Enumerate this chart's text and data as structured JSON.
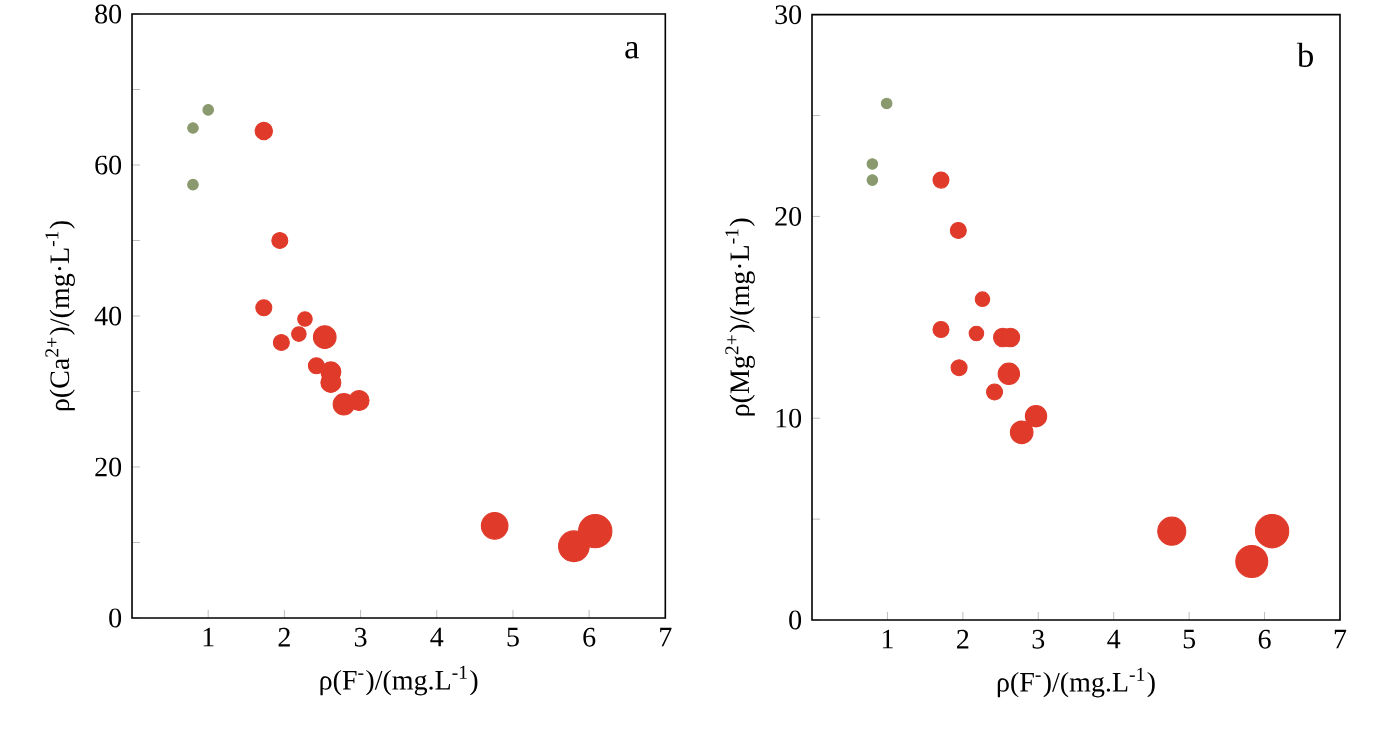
{
  "chart_data": [
    {
      "type": "bubble",
      "xlabel": "ρ(F$^{-}$)/(mg.L$^{-1}$)",
      "ylabel": "ρ(Ca$^{2+}$)/(mg·L$^{-1}$)",
      "annotations": [
        "a"
      ],
      "xlim": [
        0,
        7
      ],
      "ylim": [
        0,
        80
      ],
      "xticks": [
        1,
        2,
        3,
        4,
        5,
        6,
        7
      ],
      "yticks": [
        0,
        {
          "value": 10,
          "label": null
        },
        20,
        {
          "value": 30,
          "label": null
        },
        40,
        {
          "value": 50,
          "label": null
        },
        60,
        {
          "value": 70,
          "label": null
        },
        80
      ],
      "series": [
        {
          "color": "#8a9a6e",
          "x": [
            0.8,
            1.0,
            0.8
          ],
          "values": [
            64.9,
            67.3,
            57.4
          ],
          "sizes": [
            0.1,
            0.1,
            0.1
          ]
        },
        {
          "color": "#e03a2a",
          "x": [
            1.73,
            1.94,
            1.73,
            1.96,
            2.19,
            2.27,
            2.53,
            2.42,
            2.61,
            2.61,
            2.78,
            2.98,
            4.76,
            5.8,
            6.08
          ],
          "values": [
            64.5,
            50.0,
            41.1,
            36.5,
            37.6,
            39.6,
            37.2,
            33.4,
            32.6,
            31.2,
            28.3,
            28.8,
            12.2,
            9.5,
            11.5
          ],
          "sizes": [
            0.27,
            0.23,
            0.23,
            0.23,
            0.19,
            0.19,
            0.46,
            0.23,
            0.36,
            0.36,
            0.41,
            0.36,
            0.64,
            0.85,
            1
          ]
        }
      ]
    },
    {
      "type": "bubble",
      "xlabel": "ρ(F$^{-}$)/(mg.L$^{-1}$)",
      "ylabel": "ρ(Mg$^{2+}$)/(mg·L$^{-1}$)",
      "annotations": [
        "b"
      ],
      "xlim": [
        0,
        7
      ],
      "ylim": [
        0,
        30
      ],
      "xticks": [
        1,
        2,
        3,
        4,
        5,
        6,
        7
      ],
      "yticks": [
        0,
        {
          "value": 5,
          "label": null
        },
        10,
        {
          "value": 15,
          "label": null
        },
        20,
        {
          "value": 25,
          "label": null
        },
        30
      ],
      "series": [
        {
          "color": "#8a9a6e",
          "x": [
            0.99,
            0.8,
            0.8
          ],
          "values": [
            25.6,
            22.6,
            21.8
          ],
          "sizes": [
            0.1,
            0.1,
            0.1
          ]
        },
        {
          "color": "#e03a2a",
          "x": [
            1.71,
            1.94,
            2.26,
            1.71,
            2.18,
            2.53,
            2.63,
            1.95,
            2.61,
            2.42,
            2.78,
            2.97,
            4.77,
            5.83,
            6.1
          ],
          "values": [
            21.8,
            19.3,
            15.9,
            14.4,
            14.2,
            14.0,
            14.0,
            12.5,
            12.2,
            11.3,
            9.3,
            10.1,
            4.4,
            2.9,
            4.4
          ],
          "sizes": [
            0.23,
            0.23,
            0.19,
            0.23,
            0.19,
            0.31,
            0.31,
            0.23,
            0.41,
            0.23,
            0.46,
            0.41,
            0.71,
            0.92,
            1
          ]
        }
      ]
    }
  ]
}
